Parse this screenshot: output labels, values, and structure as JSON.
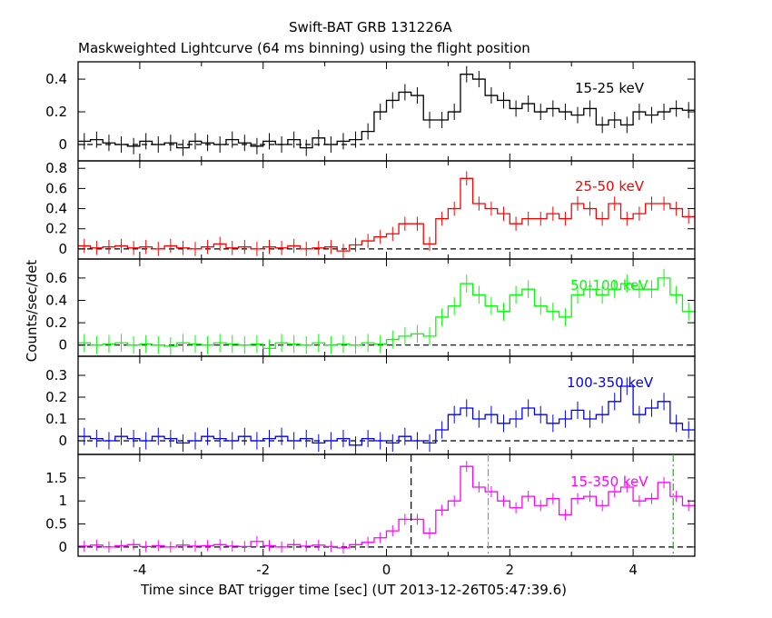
{
  "chart_data": {
    "type": "line",
    "title": "Swift-BAT GRB 131226A",
    "subtitle": "Maskweighted Lightcurve (64 ms binning) using the flight position",
    "xlabel": "Time since BAT trigger time [sec] (UT 2013-12-26T05:47:39.6)",
    "ylabel": "Counts/sec/det",
    "xlim": [
      -5,
      5
    ],
    "x_ticks": [
      "-4",
      "-2",
      "0",
      "2",
      "4"
    ],
    "x_tick_values": [
      -4,
      -2,
      0,
      2,
      4
    ],
    "bin_start": -5,
    "bin_width": 0.2,
    "vertical_lines": [
      {
        "x": 0.4,
        "style": "dashed",
        "color": "#000000"
      },
      {
        "x": 1.65,
        "style": "dash-dot",
        "color": "#999999"
      },
      {
        "x": 4.65,
        "style": "dash-dot",
        "color": "#00cc00"
      }
    ],
    "panels": [
      {
        "name": "15-25 keV",
        "color": "#000000",
        "ylim": [
          -0.1,
          0.506
        ],
        "yticks": [
          0,
          0.2,
          0.4
        ],
        "ytick_labels": [
          "0",
          "0.2",
          "0.4"
        ],
        "error": 0.05,
        "values": [
          0.02,
          0.03,
          0.01,
          0.0,
          -0.01,
          0.02,
          0.0,
          0.01,
          -0.02,
          0.02,
          0.01,
          0.0,
          0.03,
          0.01,
          -0.01,
          0.02,
          0.0,
          0.03,
          -0.02,
          0.04,
          0.0,
          0.02,
          0.03,
          0.08,
          0.2,
          0.27,
          0.32,
          0.3,
          0.15,
          0.15,
          0.2,
          0.43,
          0.4,
          0.3,
          0.27,
          0.22,
          0.25,
          0.2,
          0.22,
          0.2,
          0.18,
          0.22,
          0.12,
          0.15,
          0.12,
          0.2,
          0.18,
          0.2,
          0.22,
          0.21
        ]
      },
      {
        "name": "25-50 keV",
        "color": "#ff0000",
        "ylim": [
          -0.1,
          0.874
        ],
        "yticks": [
          0,
          0.2,
          0.4,
          0.6,
          0.8
        ],
        "ytick_labels": [
          "0",
          "0.2",
          "0.4",
          "0.6",
          "0.8"
        ],
        "error": 0.07,
        "values": [
          0.03,
          0.01,
          0.02,
          0.03,
          0.01,
          0.02,
          0.0,
          0.03,
          0.01,
          0.0,
          0.02,
          0.05,
          0.01,
          0.02,
          0.0,
          0.02,
          0.01,
          0.03,
          0.0,
          0.01,
          0.02,
          -0.02,
          0.04,
          0.08,
          0.12,
          0.15,
          0.25,
          0.25,
          0.05,
          0.3,
          0.4,
          0.7,
          0.45,
          0.4,
          0.35,
          0.25,
          0.3,
          0.3,
          0.35,
          0.3,
          0.45,
          0.4,
          0.3,
          0.45,
          0.3,
          0.35,
          0.45,
          0.45,
          0.4,
          0.32
        ]
      },
      {
        "name": "50-100 keV",
        "color": "#00ff00",
        "ylim": [
          -0.1,
          0.77
        ],
        "yticks": [
          0,
          0.2,
          0.4,
          0.6
        ],
        "ytick_labels": [
          "0",
          "0.2",
          "0.4",
          "0.6"
        ],
        "error": 0.08,
        "values": [
          0.02,
          0.0,
          0.01,
          0.02,
          0.0,
          0.01,
          0.0,
          -0.01,
          0.02,
          0.01,
          0.0,
          0.02,
          0.01,
          0.0,
          0.01,
          -0.03,
          0.02,
          0.01,
          0.0,
          0.02,
          0.0,
          0.01,
          0.0,
          0.02,
          0.01,
          0.05,
          0.08,
          0.1,
          0.08,
          0.25,
          0.35,
          0.55,
          0.45,
          0.35,
          0.3,
          0.45,
          0.5,
          0.35,
          0.3,
          0.25,
          0.45,
          0.5,
          0.45,
          0.5,
          0.55,
          0.5,
          0.5,
          0.6,
          0.45,
          0.3
        ]
      },
      {
        "name": "100-350 keV",
        "color": "#0000ff",
        "ylim": [
          -0.0625,
          0.3875
        ],
        "yticks": [
          0,
          0.1,
          0.2,
          0.3
        ],
        "ytick_labels": [
          "0",
          "0.1",
          "0.2",
          "0.3"
        ],
        "error": 0.04,
        "values": [
          0.02,
          0.01,
          0.0,
          0.02,
          0.01,
          0.0,
          0.02,
          0.01,
          -0.01,
          0.0,
          0.02,
          0.01,
          0.0,
          0.02,
          0.0,
          0.01,
          0.02,
          0.0,
          0.01,
          -0.01,
          0.0,
          0.01,
          -0.02,
          0.01,
          0.0,
          -0.01,
          0.02,
          0.0,
          -0.01,
          0.05,
          0.12,
          0.15,
          0.1,
          0.12,
          0.08,
          0.1,
          0.15,
          0.12,
          0.08,
          0.1,
          0.14,
          0.1,
          0.12,
          0.18,
          0.25,
          0.12,
          0.15,
          0.18,
          0.08,
          0.05
        ]
      },
      {
        "name": "15-350 keV",
        "color": "#ff00ff",
        "ylim": [
          -0.2,
          2.01
        ],
        "yticks": [
          0,
          0.5,
          1,
          1.5
        ],
        "ytick_labels": [
          "0",
          "0.5",
          "1",
          "1.5"
        ],
        "error": 0.12,
        "values": [
          0.02,
          0.04,
          0.0,
          0.03,
          0.05,
          0.01,
          0.03,
          0.0,
          0.04,
          0.02,
          0.03,
          0.05,
          0.02,
          0.01,
          0.12,
          0.03,
          0.0,
          0.05,
          0.02,
          0.04,
          0.01,
          -0.02,
          0.05,
          0.1,
          0.2,
          0.35,
          0.6,
          0.6,
          0.3,
          0.8,
          1.0,
          1.75,
          1.3,
          1.2,
          1.0,
          0.85,
          1.1,
          0.9,
          1.05,
          0.7,
          1.05,
          1.1,
          0.9,
          1.2,
          1.3,
          1.0,
          1.05,
          1.4,
          1.1,
          0.9
        ]
      }
    ]
  }
}
